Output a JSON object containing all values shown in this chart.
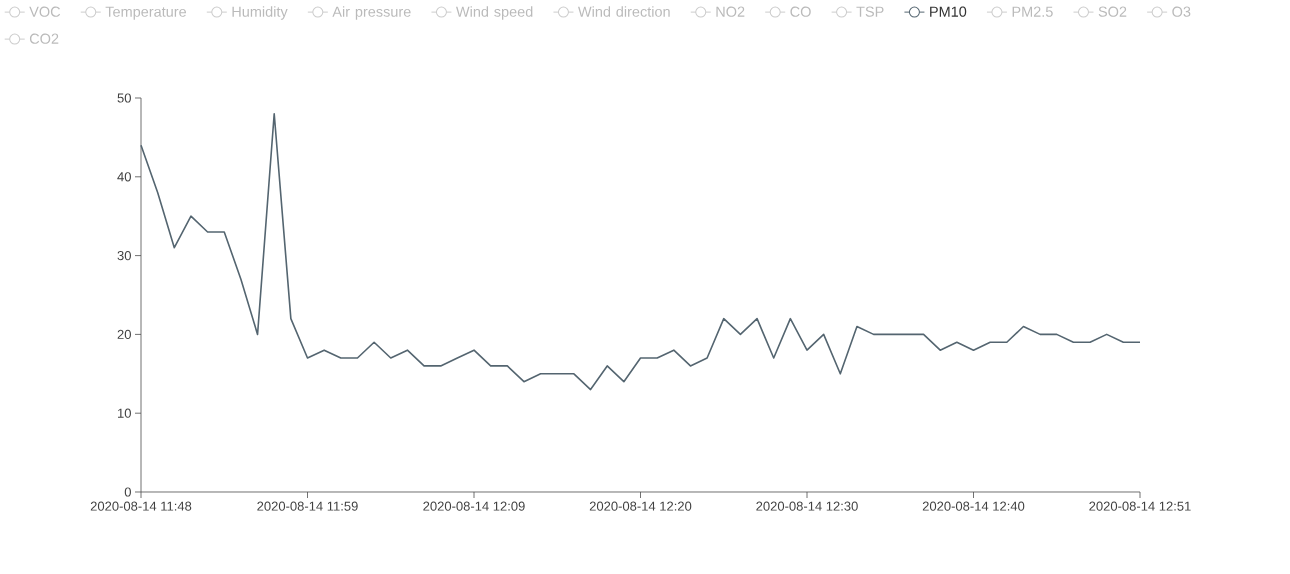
{
  "chart_data": {
    "type": "line",
    "legend": "top",
    "line_style": "solid",
    "categories": [
      "2020-08-14 11:48",
      null,
      null,
      null,
      null,
      null,
      null,
      null,
      null,
      null,
      "2020-08-14 11:59",
      null,
      null,
      null,
      null,
      null,
      null,
      null,
      null,
      null,
      "2020-08-14 12:09",
      null,
      null,
      null,
      null,
      null,
      null,
      null,
      null,
      null,
      "2020-08-14 12:20",
      null,
      null,
      null,
      null,
      null,
      null,
      null,
      null,
      null,
      "2020-08-14 12:30",
      null,
      null,
      null,
      null,
      null,
      null,
      null,
      null,
      null,
      "2020-08-14 12:40",
      null,
      null,
      null,
      null,
      null,
      null,
      null,
      null,
      null,
      "2020-08-14 12:51"
    ],
    "ylim": [
      0,
      50
    ],
    "yticks": [
      0,
      10,
      20,
      30,
      40,
      50
    ],
    "series": [
      {
        "name": "VOC",
        "color": "#cccccc",
        "values": [
          null,
          null,
          null,
          null,
          null,
          null,
          null,
          null,
          null,
          null,
          null,
          null,
          null,
          null,
          null,
          null,
          null,
          null,
          null,
          null,
          null,
          null,
          null,
          null,
          null,
          null,
          null,
          null,
          null,
          null,
          null,
          null,
          null,
          null,
          null,
          null,
          null,
          null,
          null,
          null,
          null,
          null,
          null,
          null,
          null,
          null,
          null,
          null,
          null,
          null,
          null,
          null,
          null,
          null,
          null,
          null,
          null,
          null,
          null,
          null,
          null
        ]
      },
      {
        "name": "Temperature",
        "color": "#cccccc",
        "values": [
          null,
          null,
          null,
          null,
          null,
          null,
          null,
          null,
          null,
          null,
          null,
          null,
          null,
          null,
          null,
          null,
          null,
          null,
          null,
          null,
          null,
          null,
          null,
          null,
          null,
          null,
          null,
          null,
          null,
          null,
          null,
          null,
          null,
          null,
          null,
          null,
          null,
          null,
          null,
          null,
          null,
          null,
          null,
          null,
          null,
          null,
          null,
          null,
          null,
          null,
          null,
          null,
          null,
          null,
          null,
          null,
          null,
          null,
          null,
          null,
          null
        ]
      },
      {
        "name": "Humidity",
        "color": "#cccccc",
        "values": [
          null,
          null,
          null,
          null,
          null,
          null,
          null,
          null,
          null,
          null,
          null,
          null,
          null,
          null,
          null,
          null,
          null,
          null,
          null,
          null,
          null,
          null,
          null,
          null,
          null,
          null,
          null,
          null,
          null,
          null,
          null,
          null,
          null,
          null,
          null,
          null,
          null,
          null,
          null,
          null,
          null,
          null,
          null,
          null,
          null,
          null,
          null,
          null,
          null,
          null,
          null,
          null,
          null,
          null,
          null,
          null,
          null,
          null,
          null,
          null,
          null
        ]
      },
      {
        "name": "Air pressure",
        "color": "#cccccc",
        "values": [
          null,
          null,
          null,
          null,
          null,
          null,
          null,
          null,
          null,
          null,
          null,
          null,
          null,
          null,
          null,
          null,
          null,
          null,
          null,
          null,
          null,
          null,
          null,
          null,
          null,
          null,
          null,
          null,
          null,
          null,
          null,
          null,
          null,
          null,
          null,
          null,
          null,
          null,
          null,
          null,
          null,
          null,
          null,
          null,
          null,
          null,
          null,
          null,
          null,
          null,
          null,
          null,
          null,
          null,
          null,
          null,
          null,
          null,
          null,
          null,
          null
        ]
      },
      {
        "name": "Wind speed",
        "color": "#cccccc",
        "values": [
          null,
          null,
          null,
          null,
          null,
          null,
          null,
          null,
          null,
          null,
          null,
          null,
          null,
          null,
          null,
          null,
          null,
          null,
          null,
          null,
          null,
          null,
          null,
          null,
          null,
          null,
          null,
          null,
          null,
          null,
          null,
          null,
          null,
          null,
          null,
          null,
          null,
          null,
          null,
          null,
          null,
          null,
          null,
          null,
          null,
          null,
          null,
          null,
          null,
          null,
          null,
          null,
          null,
          null,
          null,
          null,
          null,
          null,
          null,
          null,
          null
        ]
      },
      {
        "name": "Wind direction",
        "color": "#cccccc",
        "values": [
          null,
          null,
          null,
          null,
          null,
          null,
          null,
          null,
          null,
          null,
          null,
          null,
          null,
          null,
          null,
          null,
          null,
          null,
          null,
          null,
          null,
          null,
          null,
          null,
          null,
          null,
          null,
          null,
          null,
          null,
          null,
          null,
          null,
          null,
          null,
          null,
          null,
          null,
          null,
          null,
          null,
          null,
          null,
          null,
          null,
          null,
          null,
          null,
          null,
          null,
          null,
          null,
          null,
          null,
          null,
          null,
          null,
          null,
          null,
          null,
          null
        ]
      },
      {
        "name": "NO2",
        "color": "#cccccc",
        "values": [
          null,
          null,
          null,
          null,
          null,
          null,
          null,
          null,
          null,
          null,
          null,
          null,
          null,
          null,
          null,
          null,
          null,
          null,
          null,
          null,
          null,
          null,
          null,
          null,
          null,
          null,
          null,
          null,
          null,
          null,
          null,
          null,
          null,
          null,
          null,
          null,
          null,
          null,
          null,
          null,
          null,
          null,
          null,
          null,
          null,
          null,
          null,
          null,
          null,
          null,
          null,
          null,
          null,
          null,
          null,
          null,
          null,
          null,
          null,
          null,
          null
        ]
      },
      {
        "name": "CO",
        "color": "#cccccc",
        "values": [
          null,
          null,
          null,
          null,
          null,
          null,
          null,
          null,
          null,
          null,
          null,
          null,
          null,
          null,
          null,
          null,
          null,
          null,
          null,
          null,
          null,
          null,
          null,
          null,
          null,
          null,
          null,
          null,
          null,
          null,
          null,
          null,
          null,
          null,
          null,
          null,
          null,
          null,
          null,
          null,
          null,
          null,
          null,
          null,
          null,
          null,
          null,
          null,
          null,
          null,
          null,
          null,
          null,
          null,
          null,
          null,
          null,
          null,
          null,
          null,
          null
        ]
      },
      {
        "name": "TSP",
        "color": "#cccccc",
        "values": [
          null,
          null,
          null,
          null,
          null,
          null,
          null,
          null,
          null,
          null,
          null,
          null,
          null,
          null,
          null,
          null,
          null,
          null,
          null,
          null,
          null,
          null,
          null,
          null,
          null,
          null,
          null,
          null,
          null,
          null,
          null,
          null,
          null,
          null,
          null,
          null,
          null,
          null,
          null,
          null,
          null,
          null,
          null,
          null,
          null,
          null,
          null,
          null,
          null,
          null,
          null,
          null,
          null,
          null,
          null,
          null,
          null,
          null,
          null,
          null,
          null
        ]
      },
      {
        "name": "PM10",
        "color": "#546570",
        "values": [
          44,
          38,
          31,
          35,
          33,
          33,
          27,
          20,
          48,
          22,
          17,
          18,
          17,
          17,
          19,
          17,
          18,
          16,
          16,
          17,
          18,
          16,
          16,
          14,
          15,
          15,
          15,
          13,
          16,
          14,
          17,
          17,
          18,
          16,
          17,
          22,
          20,
          22,
          17,
          22,
          18,
          20,
          15,
          21,
          20,
          20,
          20,
          20,
          18,
          19,
          18,
          19,
          19,
          21,
          20,
          20,
          19,
          19,
          20,
          19,
          19
        ]
      },
      {
        "name": "PM2.5",
        "color": "#cccccc",
        "values": [
          null,
          null,
          null,
          null,
          null,
          null,
          null,
          null,
          null,
          null,
          null,
          null,
          null,
          null,
          null,
          null,
          null,
          null,
          null,
          null,
          null,
          null,
          null,
          null,
          null,
          null,
          null,
          null,
          null,
          null,
          null,
          null,
          null,
          null,
          null,
          null,
          null,
          null,
          null,
          null,
          null,
          null,
          null,
          null,
          null,
          null,
          null,
          null,
          null,
          null,
          null,
          null,
          null,
          null,
          null,
          null,
          null,
          null,
          null,
          null,
          null
        ]
      },
      {
        "name": "SO2",
        "color": "#cccccc",
        "values": [
          null,
          null,
          null,
          null,
          null,
          null,
          null,
          null,
          null,
          null,
          null,
          null,
          null,
          null,
          null,
          null,
          null,
          null,
          null,
          null,
          null,
          null,
          null,
          null,
          null,
          null,
          null,
          null,
          null,
          null,
          null,
          null,
          null,
          null,
          null,
          null,
          null,
          null,
          null,
          null,
          null,
          null,
          null,
          null,
          null,
          null,
          null,
          null,
          null,
          null,
          null,
          null,
          null,
          null,
          null,
          null,
          null,
          null,
          null,
          null,
          null
        ]
      },
      {
        "name": "O3",
        "color": "#cccccc",
        "values": [
          null,
          null,
          null,
          null,
          null,
          null,
          null,
          null,
          null,
          null,
          null,
          null,
          null,
          null,
          null,
          null,
          null,
          null,
          null,
          null,
          null,
          null,
          null,
          null,
          null,
          null,
          null,
          null,
          null,
          null,
          null,
          null,
          null,
          null,
          null,
          null,
          null,
          null,
          null,
          null,
          null,
          null,
          null,
          null,
          null,
          null,
          null,
          null,
          null,
          null,
          null,
          null,
          null,
          null,
          null,
          null,
          null,
          null,
          null,
          null,
          null
        ]
      },
      {
        "name": "CO2",
        "color": "#cccccc",
        "values": [
          null,
          null,
          null,
          null,
          null,
          null,
          null,
          null,
          null,
          null,
          null,
          null,
          null,
          null,
          null,
          null,
          null,
          null,
          null,
          null,
          null,
          null,
          null,
          null,
          null,
          null,
          null,
          null,
          null,
          null,
          null,
          null,
          null,
          null,
          null,
          null,
          null,
          null,
          null,
          null,
          null,
          null,
          null,
          null,
          null,
          null,
          null,
          null,
          null,
          null,
          null,
          null,
          null,
          null,
          null,
          null,
          null,
          null,
          null,
          null,
          null
        ]
      }
    ]
  }
}
